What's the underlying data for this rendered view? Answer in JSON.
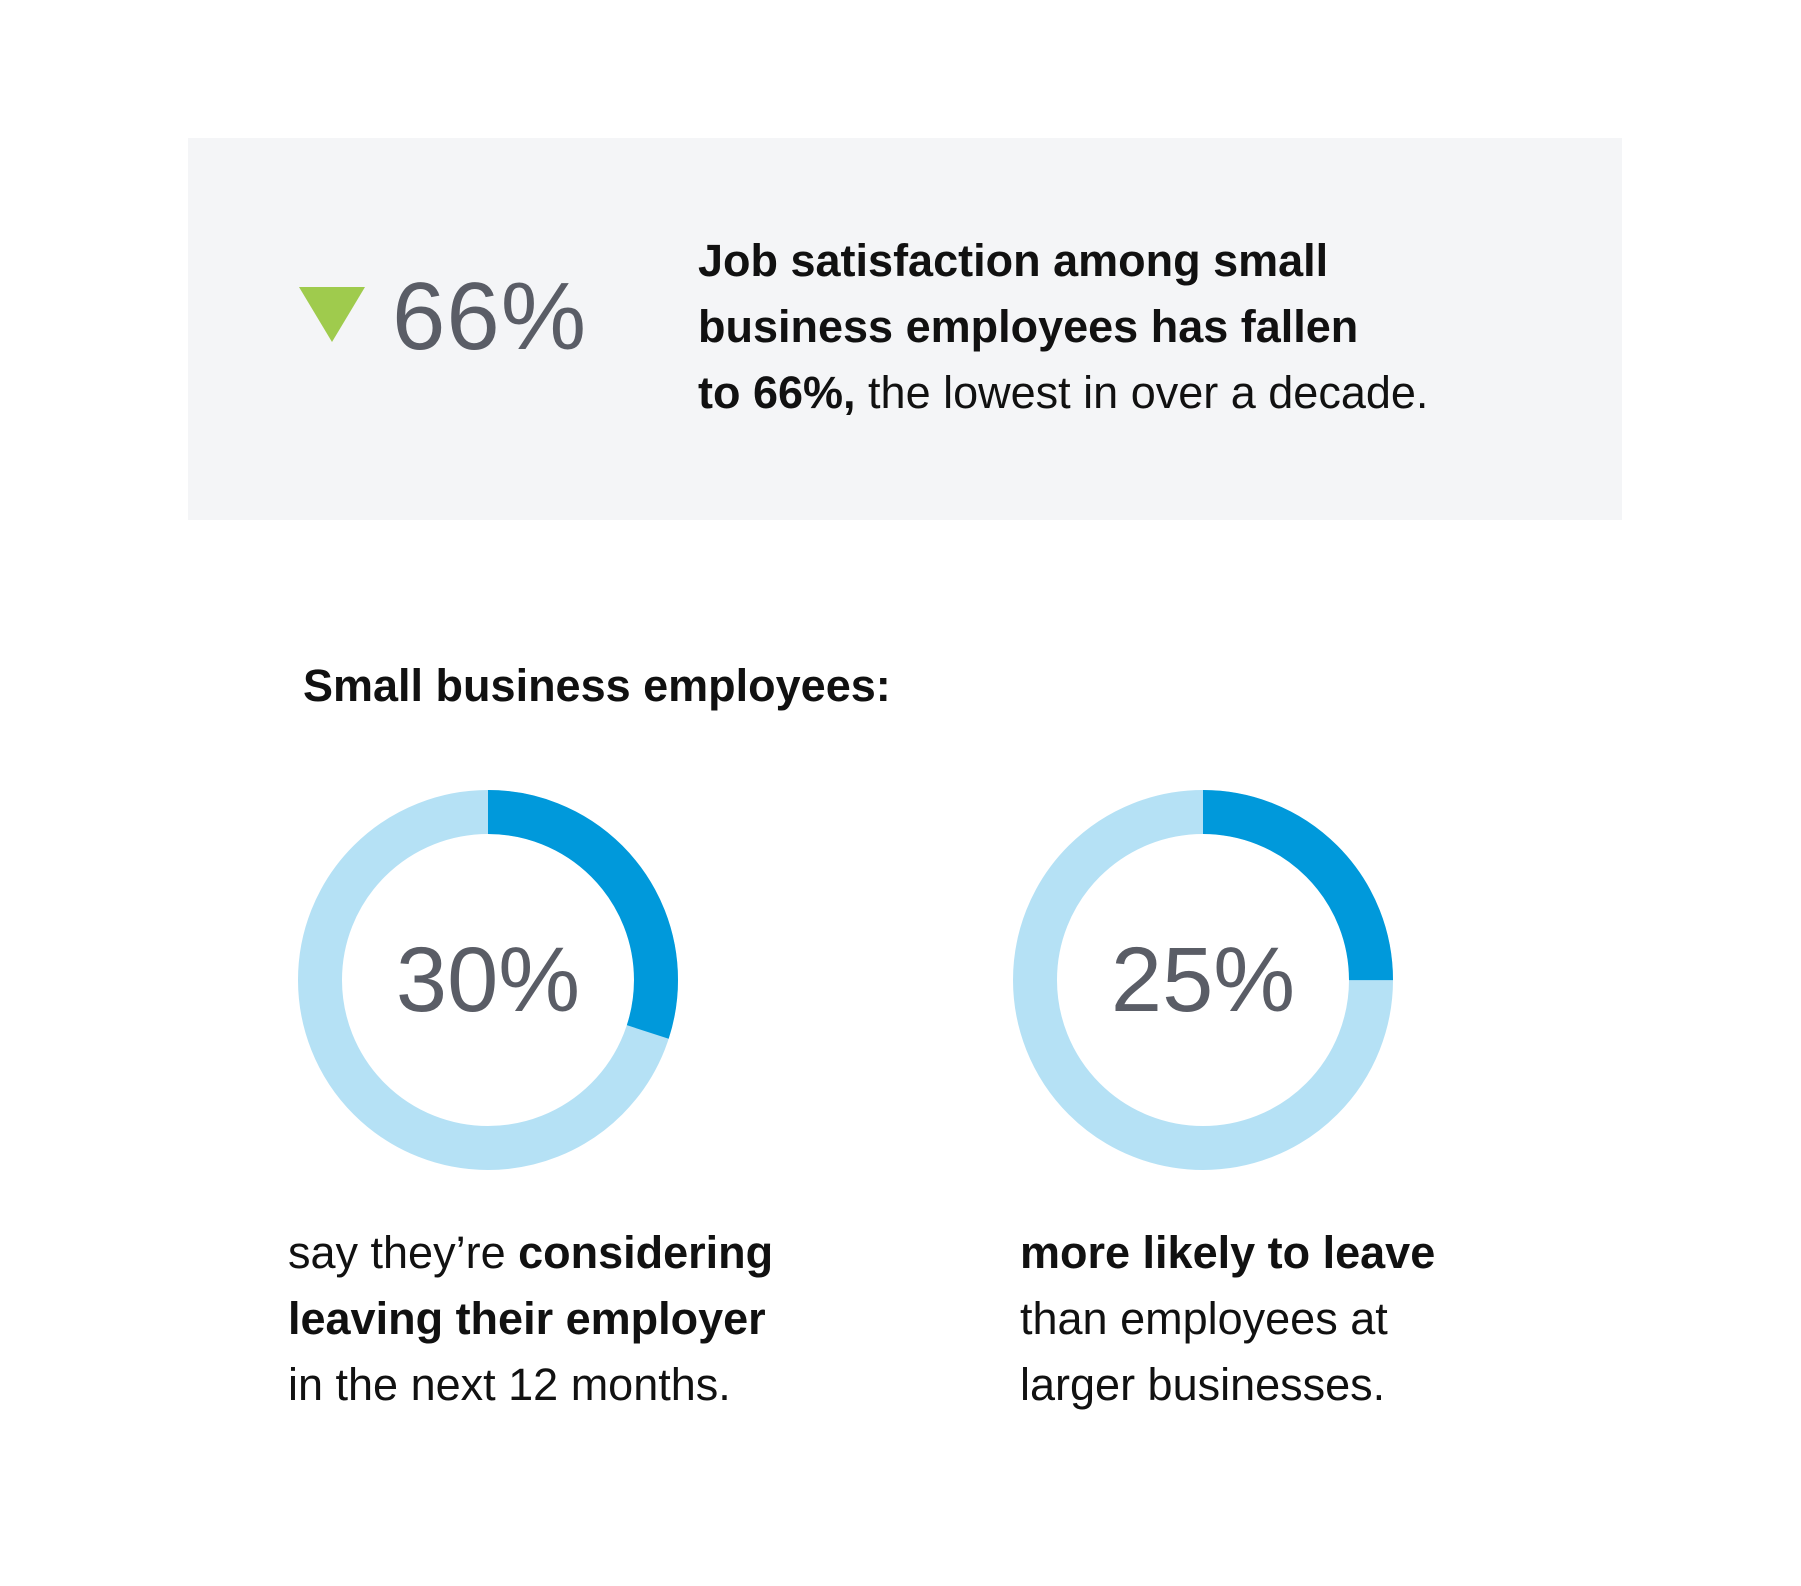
{
  "callout": {
    "stat": "66%",
    "arrow_icon": "down-triangle-icon",
    "arrow_color": "#9fcb4d",
    "text_bold_line1": "Job satisfaction among small",
    "text_bold_line2": "business employees has fallen",
    "text_bold_line3": "to 66%,",
    "text_regular_line3": " the lowest in over a decade."
  },
  "section_title": "Small business employees:",
  "chart_data": [
    {
      "type": "pie",
      "style": "donut",
      "value": 30,
      "label": "30%",
      "colors": {
        "filled": "#0099db",
        "remainder": "#b5e1f5"
      },
      "caption": {
        "regular_1": "say they’re ",
        "bold_1": "considering",
        "bold_2": "leaving their employer",
        "regular_2": "in the next 12 months."
      }
    },
    {
      "type": "pie",
      "style": "donut",
      "value": 25,
      "label": "25%",
      "colors": {
        "filled": "#0099db",
        "remainder": "#b5e1f5"
      },
      "caption": {
        "bold_1": "more likely to leave",
        "regular_1": "than employees at",
        "regular_2": "larger businesses."
      }
    }
  ]
}
